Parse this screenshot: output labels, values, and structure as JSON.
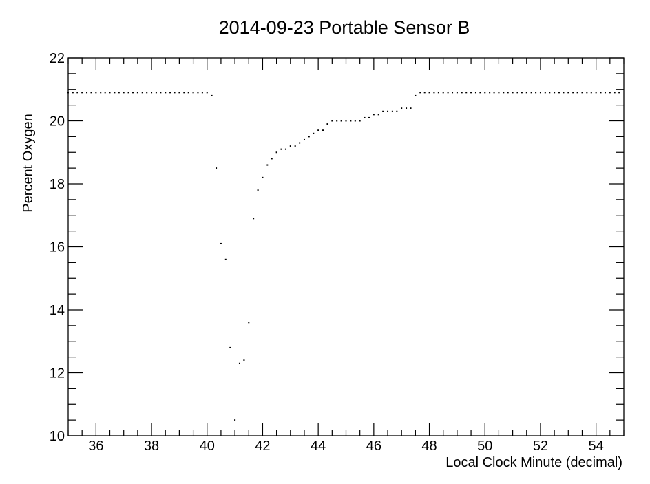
{
  "chart_data": {
    "type": "scatter",
    "title": "2014-09-23  Portable Sensor B",
    "xlabel": "Local Clock Minute  (decimal)",
    "ylabel": "Percent Oxygen",
    "xlim": [
      35,
      55
    ],
    "ylim": [
      10,
      22
    ],
    "x_ticks": [
      36,
      38,
      40,
      42,
      44,
      46,
      48,
      50,
      52,
      54
    ],
    "y_ticks": [
      10,
      12,
      14,
      16,
      18,
      20,
      22
    ],
    "x_minor_step": 0.5,
    "y_minor_step": 0.5,
    "grid": false,
    "color": "#000000",
    "points": [
      [
        35.0,
        20.9
      ],
      [
        35.17,
        20.9
      ],
      [
        35.33,
        20.9
      ],
      [
        35.5,
        20.9
      ],
      [
        35.67,
        20.9
      ],
      [
        35.83,
        20.9
      ],
      [
        36.0,
        20.9
      ],
      [
        36.17,
        20.9
      ],
      [
        36.33,
        20.9
      ],
      [
        36.5,
        20.9
      ],
      [
        36.67,
        20.9
      ],
      [
        36.83,
        20.9
      ],
      [
        37.0,
        20.9
      ],
      [
        37.17,
        20.9
      ],
      [
        37.33,
        20.9
      ],
      [
        37.5,
        20.9
      ],
      [
        37.67,
        20.9
      ],
      [
        37.83,
        20.9
      ],
      [
        38.0,
        20.9
      ],
      [
        38.17,
        20.9
      ],
      [
        38.33,
        20.9
      ],
      [
        38.5,
        20.9
      ],
      [
        38.67,
        20.9
      ],
      [
        38.83,
        20.9
      ],
      [
        39.0,
        20.9
      ],
      [
        39.17,
        20.9
      ],
      [
        39.33,
        20.9
      ],
      [
        39.5,
        20.9
      ],
      [
        39.67,
        20.9
      ],
      [
        39.83,
        20.9
      ],
      [
        40.0,
        20.9
      ],
      [
        40.17,
        20.8
      ],
      [
        40.33,
        18.5
      ],
      [
        40.5,
        16.1
      ],
      [
        40.67,
        15.6
      ],
      [
        40.83,
        12.8
      ],
      [
        41.0,
        10.5
      ],
      [
        41.17,
        12.3
      ],
      [
        41.33,
        12.4
      ],
      [
        41.5,
        13.6
      ],
      [
        41.67,
        16.9
      ],
      [
        41.83,
        17.8
      ],
      [
        42.0,
        18.2
      ],
      [
        42.17,
        18.6
      ],
      [
        42.33,
        18.8
      ],
      [
        42.5,
        19.0
      ],
      [
        42.67,
        19.1
      ],
      [
        42.83,
        19.1
      ],
      [
        43.0,
        19.2
      ],
      [
        43.17,
        19.2
      ],
      [
        43.33,
        19.3
      ],
      [
        43.5,
        19.4
      ],
      [
        43.67,
        19.5
      ],
      [
        43.83,
        19.6
      ],
      [
        44.0,
        19.7
      ],
      [
        44.17,
        19.7
      ],
      [
        44.33,
        19.9
      ],
      [
        44.5,
        20.0
      ],
      [
        44.67,
        20.0
      ],
      [
        44.83,
        20.0
      ],
      [
        45.0,
        20.0
      ],
      [
        45.17,
        20.0
      ],
      [
        45.33,
        20.0
      ],
      [
        45.5,
        20.0
      ],
      [
        45.67,
        20.1
      ],
      [
        45.83,
        20.1
      ],
      [
        46.0,
        20.2
      ],
      [
        46.17,
        20.2
      ],
      [
        46.33,
        20.3
      ],
      [
        46.5,
        20.3
      ],
      [
        46.67,
        20.3
      ],
      [
        46.83,
        20.3
      ],
      [
        47.0,
        20.4
      ],
      [
        47.17,
        20.4
      ],
      [
        47.33,
        20.4
      ],
      [
        47.5,
        20.8
      ],
      [
        47.67,
        20.9
      ],
      [
        47.83,
        20.9
      ],
      [
        48.0,
        20.9
      ],
      [
        48.17,
        20.9
      ],
      [
        48.33,
        20.9
      ],
      [
        48.5,
        20.9
      ],
      [
        48.67,
        20.9
      ],
      [
        48.83,
        20.9
      ],
      [
        49.0,
        20.9
      ],
      [
        49.17,
        20.9
      ],
      [
        49.33,
        20.9
      ],
      [
        49.5,
        20.9
      ],
      [
        49.67,
        20.9
      ],
      [
        49.83,
        20.9
      ],
      [
        50.0,
        20.9
      ],
      [
        50.17,
        20.9
      ],
      [
        50.33,
        20.9
      ],
      [
        50.5,
        20.9
      ],
      [
        50.67,
        20.9
      ],
      [
        50.83,
        20.9
      ],
      [
        51.0,
        20.9
      ],
      [
        51.17,
        20.9
      ],
      [
        51.33,
        20.9
      ],
      [
        51.5,
        20.9
      ],
      [
        51.67,
        20.9
      ],
      [
        51.83,
        20.9
      ],
      [
        52.0,
        20.9
      ],
      [
        52.17,
        20.9
      ],
      [
        52.33,
        20.9
      ],
      [
        52.5,
        20.9
      ],
      [
        52.67,
        20.9
      ],
      [
        52.83,
        20.9
      ],
      [
        53.0,
        20.9
      ],
      [
        53.17,
        20.9
      ],
      [
        53.33,
        20.9
      ],
      [
        53.5,
        20.9
      ],
      [
        53.67,
        20.9
      ],
      [
        53.83,
        20.9
      ],
      [
        54.0,
        20.9
      ],
      [
        54.17,
        20.9
      ],
      [
        54.33,
        20.9
      ],
      [
        54.5,
        20.9
      ],
      [
        54.67,
        20.9
      ],
      [
        54.83,
        20.9
      ]
    ]
  }
}
